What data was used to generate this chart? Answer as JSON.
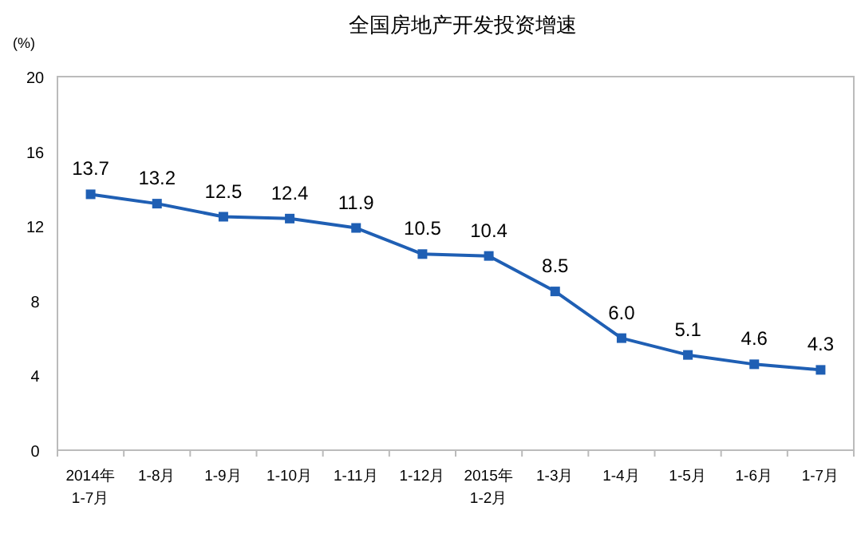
{
  "chart_data": {
    "type": "line",
    "title": "全国房地产开发投资增速",
    "ylabel": "(%)",
    "categories": [
      "2014年\n1-7月",
      "1-8月",
      "1-9月",
      "1-10月",
      "1-11月",
      "1-12月",
      "2015年\n1-2月",
      "1-3月",
      "1-4月",
      "1-5月",
      "1-6月",
      "1-7月"
    ],
    "series": [
      {
        "color": "#1f5fb4",
        "values": [
          13.7,
          13.2,
          12.5,
          12.4,
          11.9,
          10.5,
          10.4,
          8.5,
          6.0,
          5.1,
          4.6,
          4.3
        ],
        "value_labels": [
          "13.7",
          "13.2",
          "12.5",
          "12.4",
          "11.9",
          "10.5",
          "10.4",
          "8.5",
          "6.0",
          "5.1",
          "4.6",
          "4.3"
        ]
      }
    ],
    "ylim": [
      0,
      20
    ],
    "yticks": [
      0,
      4,
      8,
      12,
      16,
      20
    ],
    "grid": false,
    "marker": "square",
    "line_style": "solid"
  }
}
